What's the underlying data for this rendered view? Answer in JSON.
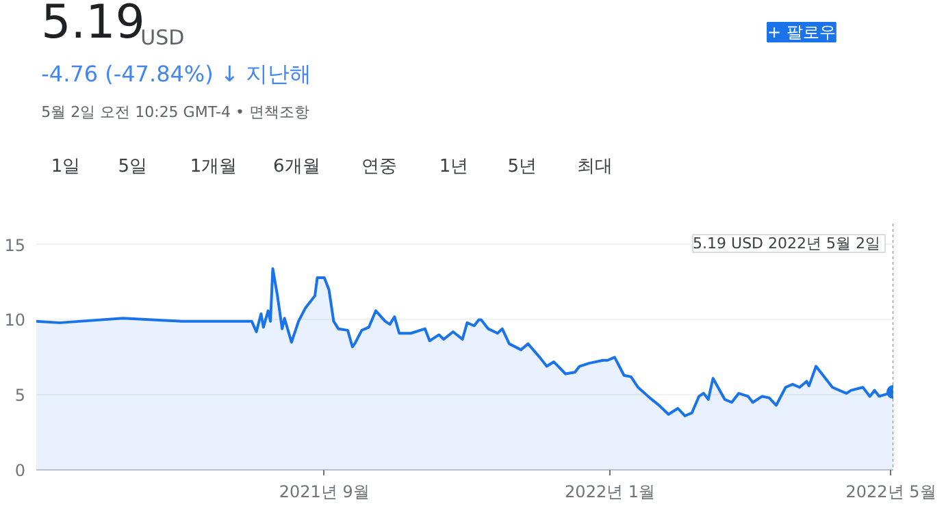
{
  "chart_data": {
    "type": "area",
    "title": "5.19",
    "subtitle": "USD",
    "annotations": [
      "-4.76 (-47.84%) ↓ 지난해",
      "5월 2일 오전 10:25 GMT-4 • 면책조항",
      "1일",
      "5일",
      "1개월",
      "6개월",
      "연중",
      "1년",
      "5년",
      "최대",
      "+ 팔로우",
      "5.19 USD  2022년 5월 2일"
    ],
    "x": [
      "2021-05-01",
      "2021-05-11",
      "2021-06-07",
      "2021-07-02",
      "2021-08-01",
      "2021-08-03",
      "2021-08-05",
      "2021-08-06",
      "2021-08-08",
      "2021-08-09",
      "2021-08-10",
      "2021-08-12",
      "2021-08-14",
      "2021-08-15",
      "2021-08-18",
      "2021-08-21",
      "2021-08-24",
      "2021-08-28",
      "2021-08-29",
      "2021-09-01",
      "2021-09-03",
      "2021-09-05",
      "2021-09-07",
      "2021-09-11",
      "2021-09-13",
      "2021-09-14",
      "2021-09-17",
      "2021-09-20",
      "2021-09-23",
      "2021-09-27",
      "2021-09-29",
      "2021-10-01",
      "2021-10-03",
      "2021-10-08",
      "2021-10-14",
      "2021-10-16",
      "2021-10-20",
      "2021-10-22",
      "2021-10-26",
      "2021-10-30",
      "2021-11-01",
      "2021-11-04",
      "2021-11-06",
      "2021-11-07",
      "2021-11-10",
      "2021-11-14",
      "2021-11-16",
      "2021-11-19",
      "2021-11-24",
      "2021-11-27",
      "2021-12-02",
      "2021-12-05",
      "2021-12-08",
      "2021-12-13",
      "2021-12-17",
      "2021-12-19",
      "2021-12-23",
      "2021-12-29",
      "2021-12-31",
      "2022-01-03",
      "2022-01-07",
      "2022-01-10",
      "2022-01-13",
      "2022-01-18",
      "2022-01-22",
      "2022-01-26",
      "2022-01-30",
      "2022-02-02",
      "2022-02-05",
      "2022-02-08",
      "2022-02-10",
      "2022-02-12",
      "2022-02-14",
      "2022-02-19",
      "2022-02-22",
      "2022-02-25",
      "2022-03-01",
      "2022-03-03",
      "2022-03-07",
      "2022-03-10",
      "2022-03-13",
      "2022-03-17",
      "2022-03-20",
      "2022-03-23",
      "2022-03-26",
      "2022-03-27",
      "2022-03-30",
      "2022-04-01",
      "2022-04-06",
      "2022-04-12",
      "2022-04-14",
      "2022-04-19",
      "2022-04-22",
      "2022-04-24",
      "2022-04-26",
      "2022-05-02"
    ],
    "series": [
      {
        "color": "#1a73e8",
        "values": [
          9.9,
          9.8,
          10.1,
          9.9,
          9.9,
          9.2,
          10.4,
          9.5,
          10.6,
          9.9,
          13.4,
          11.6,
          9.4,
          10.1,
          8.5,
          9.9,
          10.8,
          11.6,
          12.8,
          12.8,
          12.0,
          9.9,
          9.4,
          9.3,
          8.2,
          8.4,
          9.3,
          9.5,
          10.6,
          9.9,
          9.7,
          10.2,
          9.1,
          9.1,
          9.4,
          8.6,
          9.0,
          8.7,
          9.2,
          8.7,
          9.8,
          9.6,
          10.0,
          10.0,
          9.4,
          9.1,
          9.4,
          8.4,
          8.0,
          8.4,
          7.5,
          6.9,
          7.2,
          6.4,
          6.5,
          6.9,
          7.1,
          7.3,
          7.3,
          7.5,
          6.3,
          6.2,
          5.5,
          4.8,
          4.3,
          3.7,
          4.1,
          3.6,
          3.8,
          4.9,
          5.1,
          4.7,
          6.1,
          4.7,
          4.5,
          5.1,
          4.9,
          4.5,
          4.9,
          4.8,
          4.3,
          5.5,
          5.7,
          5.5,
          5.9,
          5.6,
          6.9,
          6.5,
          5.5,
          5.1,
          5.3,
          5.5,
          4.9,
          5.3,
          4.9,
          5.19
        ]
      }
    ],
    "xlim": [
      "2021-05-01",
      "2022-05-02"
    ],
    "xticks": [
      {
        "value": "2021-09-01",
        "label": "2021년 9월"
      },
      {
        "value": "2022-01-01",
        "label": "2022년 1월"
      },
      {
        "value": "2022-05-01",
        "label": "2022년 5월"
      }
    ],
    "ylim": [
      0,
      16.4
    ],
    "yticks": [
      0,
      5,
      10,
      15
    ],
    "grid": "y",
    "ref_lines": [
      {
        "axis": "x",
        "value": "2022-05-02",
        "line_style": "dotted",
        "color": "#80868b"
      }
    ]
  }
}
